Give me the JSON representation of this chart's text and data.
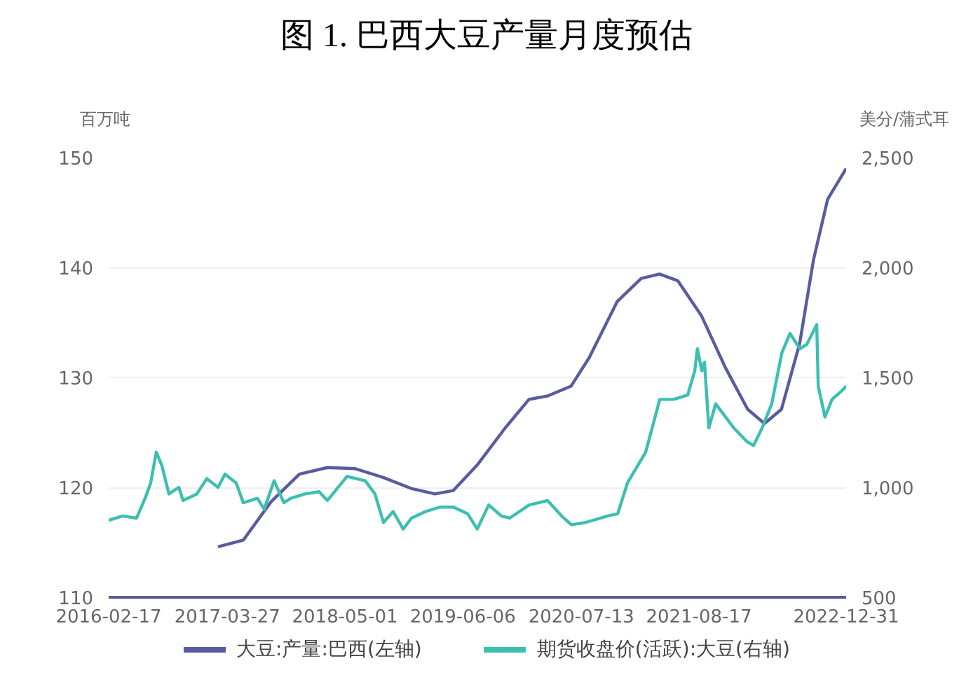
{
  "chart_data": {
    "type": "line",
    "title": "图 1. 巴西大豆产量月度预估",
    "ylabel": "百万吨",
    "y2label": "美分/蒲式耳",
    "xlim": [
      "2016-02-17",
      "2022-12-31"
    ],
    "xticks": [
      "2016-02-17",
      "2017-03-27",
      "2018-05-01",
      "2019-06-06",
      "2020-07-13",
      "2021-08-17",
      "2022-12-31"
    ],
    "ylim": [
      110,
      150
    ],
    "yticks": [
      110,
      120,
      130,
      140,
      150
    ],
    "y2lim": [
      500,
      2500
    ],
    "y2ticks": [
      500,
      {
        "value": 1000,
        "label": "1,000"
      },
      {
        "value": 1500,
        "label": "1,500"
      },
      {
        "value": 2000,
        "label": "2,000"
      },
      {
        "value": 2500,
        "label": "2,500"
      }
    ],
    "grid": "y",
    "legend": "bottom",
    "series": [
      {
        "name": "大豆:产量:巴西(左轴)",
        "color": "#5a5b9f",
        "x": [
          "2017-02-23",
          "2017-05-20",
          "2017-08-23",
          "2017-11-27",
          "2018-03-02",
          "2018-06-05",
          "2018-09-08",
          "2018-12-12",
          "2019-03-03",
          "2019-05-04",
          "2019-07-24",
          "2019-10-28",
          "2020-01-17",
          "2020-03-19",
          "2020-06-08",
          "2020-08-09",
          "2020-11-12",
          "2021-02-02",
          "2021-04-05",
          "2021-06-06",
          "2021-08-26",
          "2021-11-15",
          "2022-01-30",
          "2022-03-28",
          "2022-05-25",
          "2022-07-26",
          "2022-09-11",
          "2022-10-29",
          "2022-12-31"
        ],
        "values": [
          114.6,
          115.2,
          118.7,
          121.2,
          121.8,
          121.7,
          120.9,
          119.9,
          119.4,
          119.7,
          122.0,
          125.4,
          128.0,
          128.3,
          129.2,
          131.8,
          136.9,
          139.0,
          139.4,
          138.8,
          135.6,
          130.9,
          127.1,
          125.8,
          127.1,
          133.1,
          140.7,
          146.2,
          149.0
        ]
      },
      {
        "name": "期货收盘价(活跃):大豆(右轴)",
        "axis": "y2",
        "color": "#3dbfb0",
        "x": [
          "2016-02-17",
          "2016-04-05",
          "2016-05-22",
          "2016-06-20",
          "2016-07-09",
          "2016-07-28",
          "2016-08-16",
          "2016-09-09",
          "2016-10-13",
          "2016-10-27",
          "2016-12-13",
          "2017-01-16",
          "2017-02-23",
          "2017-03-19",
          "2017-04-26",
          "2017-05-20",
          "2017-07-07",
          "2017-07-30",
          "2017-09-02",
          "2017-10-05",
          "2017-10-29",
          "2017-12-16",
          "2018-02-02",
          "2018-03-02",
          "2018-05-08",
          "2018-07-09",
          "2018-08-11",
          "2018-09-09",
          "2018-10-12",
          "2018-11-15",
          "2018-12-13",
          "2019-01-30",
          "2019-03-19",
          "2019-05-05",
          "2019-06-22",
          "2019-07-25",
          "2019-09-02",
          "2019-10-15",
          "2019-11-12",
          "2020-01-18",
          "2020-03-20",
          "2020-05-07",
          "2020-06-09",
          "2020-07-27",
          "2020-10-11",
          "2020-11-14",
          "2020-12-17",
          "2021-02-17",
          "2021-04-06",
          "2021-05-23",
          "2021-07-10",
          "2021-08-03",
          "2021-08-12",
          "2021-08-27",
          "2021-09-05",
          "2021-09-20",
          "2021-10-13",
          "2021-12-14",
          "2022-01-26",
          "2022-02-19",
          "2022-03-20",
          "2022-04-22",
          "2022-05-26",
          "2022-06-23",
          "2022-07-27",
          "2022-08-19",
          "2022-09-22",
          "2022-09-27",
          "2022-10-20",
          "2022-11-13",
          "2022-12-17",
          "2022-12-31"
        ],
        "values": [
          850,
          870,
          860,
          950,
          1020,
          1160,
          1100,
          970,
          1000,
          940,
          970,
          1040,
          1000,
          1060,
          1020,
          930,
          950,
          900,
          1030,
          930,
          950,
          970,
          980,
          940,
          1050,
          1030,
          970,
          840,
          890,
          810,
          860,
          890,
          910,
          910,
          880,
          810,
          920,
          870,
          860,
          920,
          940,
          870,
          830,
          840,
          870,
          880,
          1020,
          1160,
          1400,
          1400,
          1420,
          1530,
          1630,
          1530,
          1570,
          1270,
          1380,
          1270,
          1210,
          1190,
          1270,
          1380,
          1610,
          1700,
          1630,
          1650,
          1740,
          1460,
          1320,
          1400,
          1440,
          1460
        ]
      }
    ]
  }
}
